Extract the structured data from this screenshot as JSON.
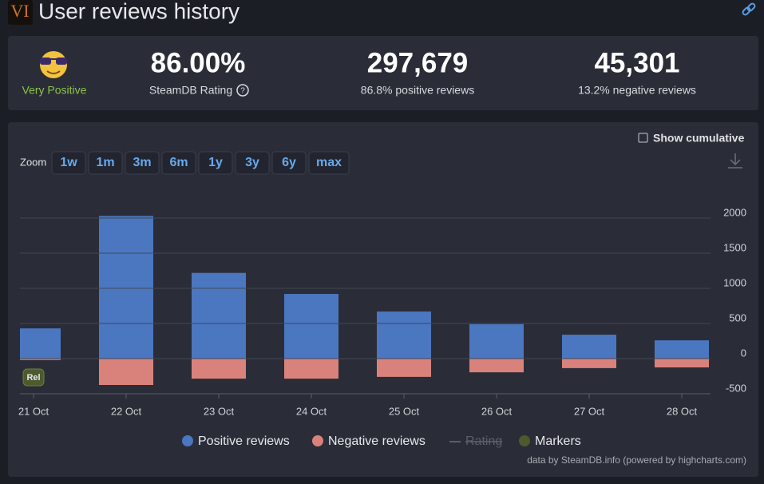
{
  "header": {
    "logo": "VI",
    "title": "User reviews history"
  },
  "summary": {
    "rating_word": "Very Positive",
    "rating": "86.00%",
    "rating_label": "SteamDB Rating",
    "positive_total": "297,679",
    "positive_label": "86.8% positive reviews",
    "negative_total": "45,301",
    "negative_label": "13.2% negative reviews"
  },
  "controls": {
    "cumulative": "Show cumulative",
    "zoom_label": "Zoom",
    "zoom_buttons": [
      "1w",
      "1m",
      "3m",
      "6m",
      "1y",
      "3y",
      "6y",
      "max"
    ]
  },
  "chart_data": {
    "type": "bar",
    "categories": [
      "21 Oct",
      "22 Oct",
      "23 Oct",
      "24 Oct",
      "25 Oct",
      "26 Oct",
      "27 Oct",
      "28 Oct"
    ],
    "series": [
      {
        "name": "Positive reviews",
        "color": "#4a77c0",
        "values": [
          430,
          2030,
          1220,
          920,
          670,
          490,
          340,
          260
        ]
      },
      {
        "name": "Negative reviews",
        "color": "#d9827b",
        "values": [
          -20,
          -375,
          -285,
          -285,
          -260,
          -195,
          -135,
          -125
        ]
      }
    ],
    "other_legend": [
      {
        "name": "Rating",
        "hidden": true
      },
      {
        "name": "Markers",
        "color": "#4c5a2e"
      }
    ],
    "markers": [
      {
        "x": "21 Oct",
        "label": "Rel"
      }
    ],
    "ylim": [
      -500,
      2500
    ],
    "yticks": [
      -500,
      0,
      500,
      1000,
      1500,
      2000
    ],
    "grid": true,
    "credits": "data by SteamDB.info (powered by highcharts.com)"
  }
}
